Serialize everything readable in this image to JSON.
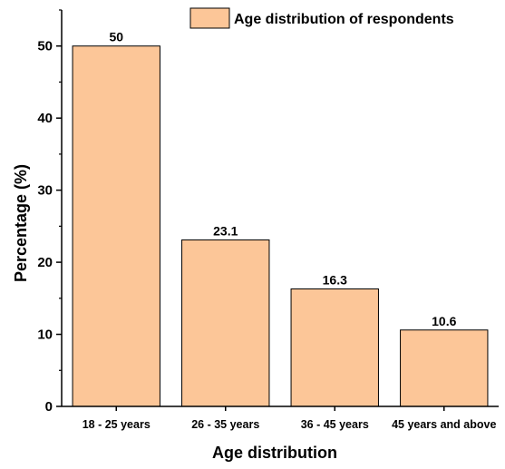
{
  "chart_data": {
    "type": "bar",
    "categories": [
      "18 - 25 years",
      "26 - 35 years",
      "36 - 45 years",
      "45 years and above"
    ],
    "series": [
      {
        "name": "Age distribution of respondents",
        "values": [
          50,
          23.1,
          16.3,
          10.6
        ]
      }
    ],
    "data_labels": [
      "50",
      "23.1",
      "16.3",
      "10.6"
    ],
    "xlabel": "Age distribution",
    "ylabel": "Percentage (%)",
    "ylim": [
      0,
      55
    ],
    "yticks": [
      0,
      10,
      20,
      30,
      40,
      50
    ],
    "grid": false,
    "legend_position": "top-right",
    "bar_color": "#fcc698",
    "edge_color": "#000000"
  }
}
